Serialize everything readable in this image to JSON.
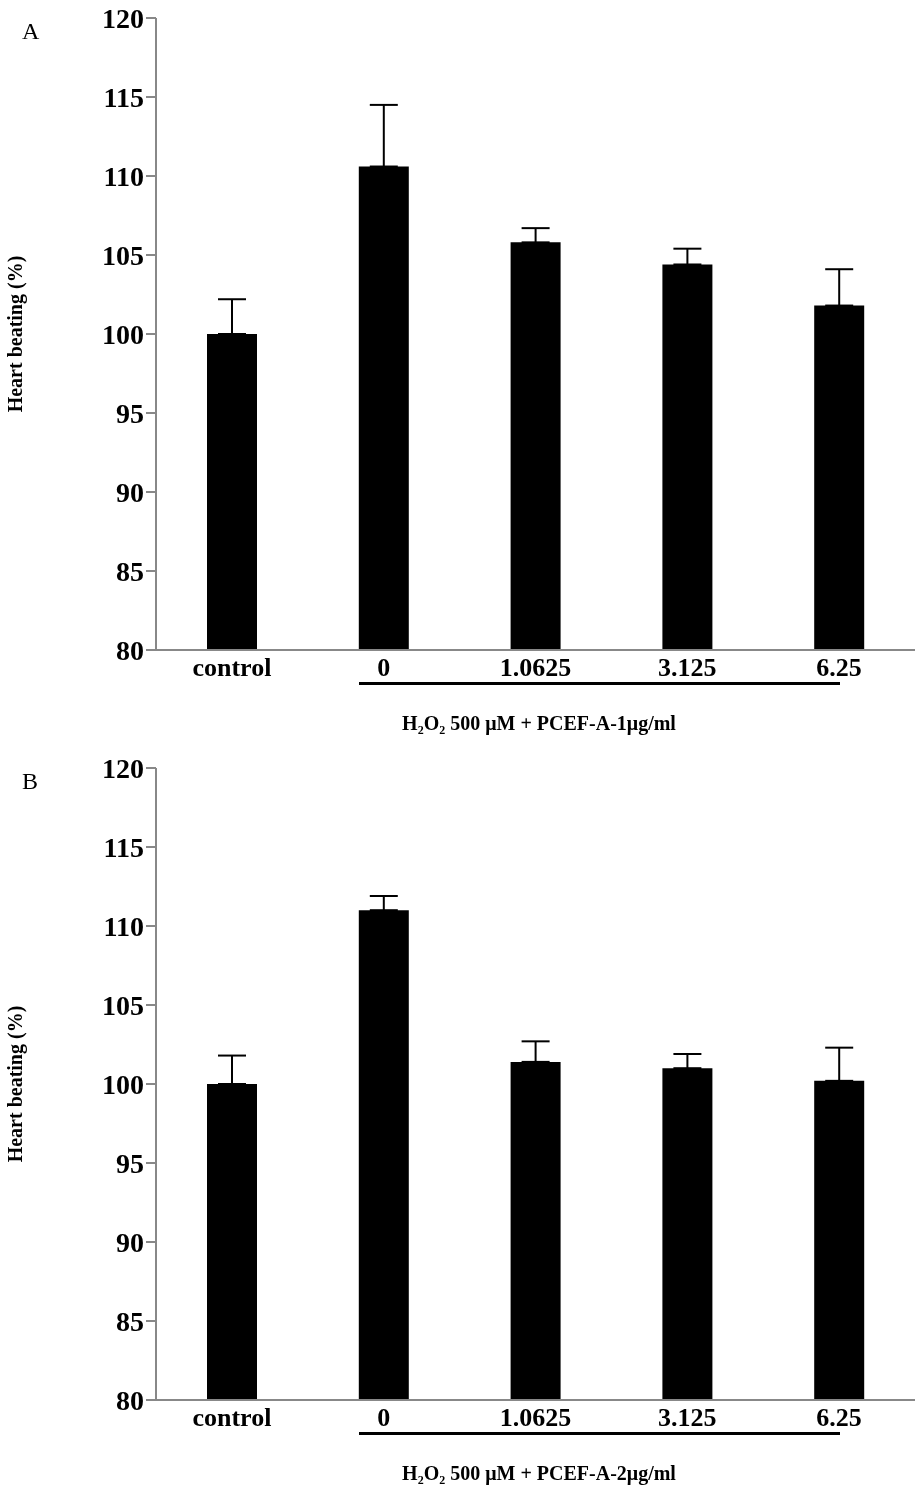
{
  "chart_data": [
    {
      "type": "bar",
      "title": "A",
      "ylabel": "Heart beating (%)",
      "xlabel": "H₂O₂ 500 μM + PCEF-A-1μg/ml",
      "categories": [
        "control",
        "0",
        "1.0625",
        "3.125",
        "6.25"
      ],
      "values": [
        100,
        110.6,
        105.8,
        104.4,
        101.8
      ],
      "errors": [
        [
          100,
          102.2
        ],
        [
          110.6,
          114.5
        ],
        [
          105.8,
          106.7
        ],
        [
          104.4,
          105.4
        ],
        [
          101.8,
          104.1
        ]
      ],
      "color": "#000000",
      "ylim": [
        80,
        120
      ],
      "yticks": [
        80,
        85,
        90,
        95,
        100,
        105,
        110,
        115,
        120
      ]
    },
    {
      "type": "bar",
      "title": "B",
      "ylabel": "Heart beating (%)",
      "xlabel": "H₂O₂ 500 μM + PCEF-A-2μg/ml",
      "categories": [
        "control",
        "0",
        "1.0625",
        "3.125",
        "6.25"
      ],
      "values": [
        100,
        111.0,
        101.4,
        101.0,
        100.2
      ],
      "errors": [
        [
          100,
          101.8
        ],
        [
          111.0,
          111.9
        ],
        [
          101.4,
          102.7
        ],
        [
          101.0,
          101.9
        ],
        [
          100.2,
          102.3
        ]
      ],
      "color": "#000000",
      "ylim": [
        80,
        120
      ],
      "yticks": [
        80,
        85,
        90,
        95,
        100,
        105,
        110,
        115,
        120
      ]
    }
  ]
}
